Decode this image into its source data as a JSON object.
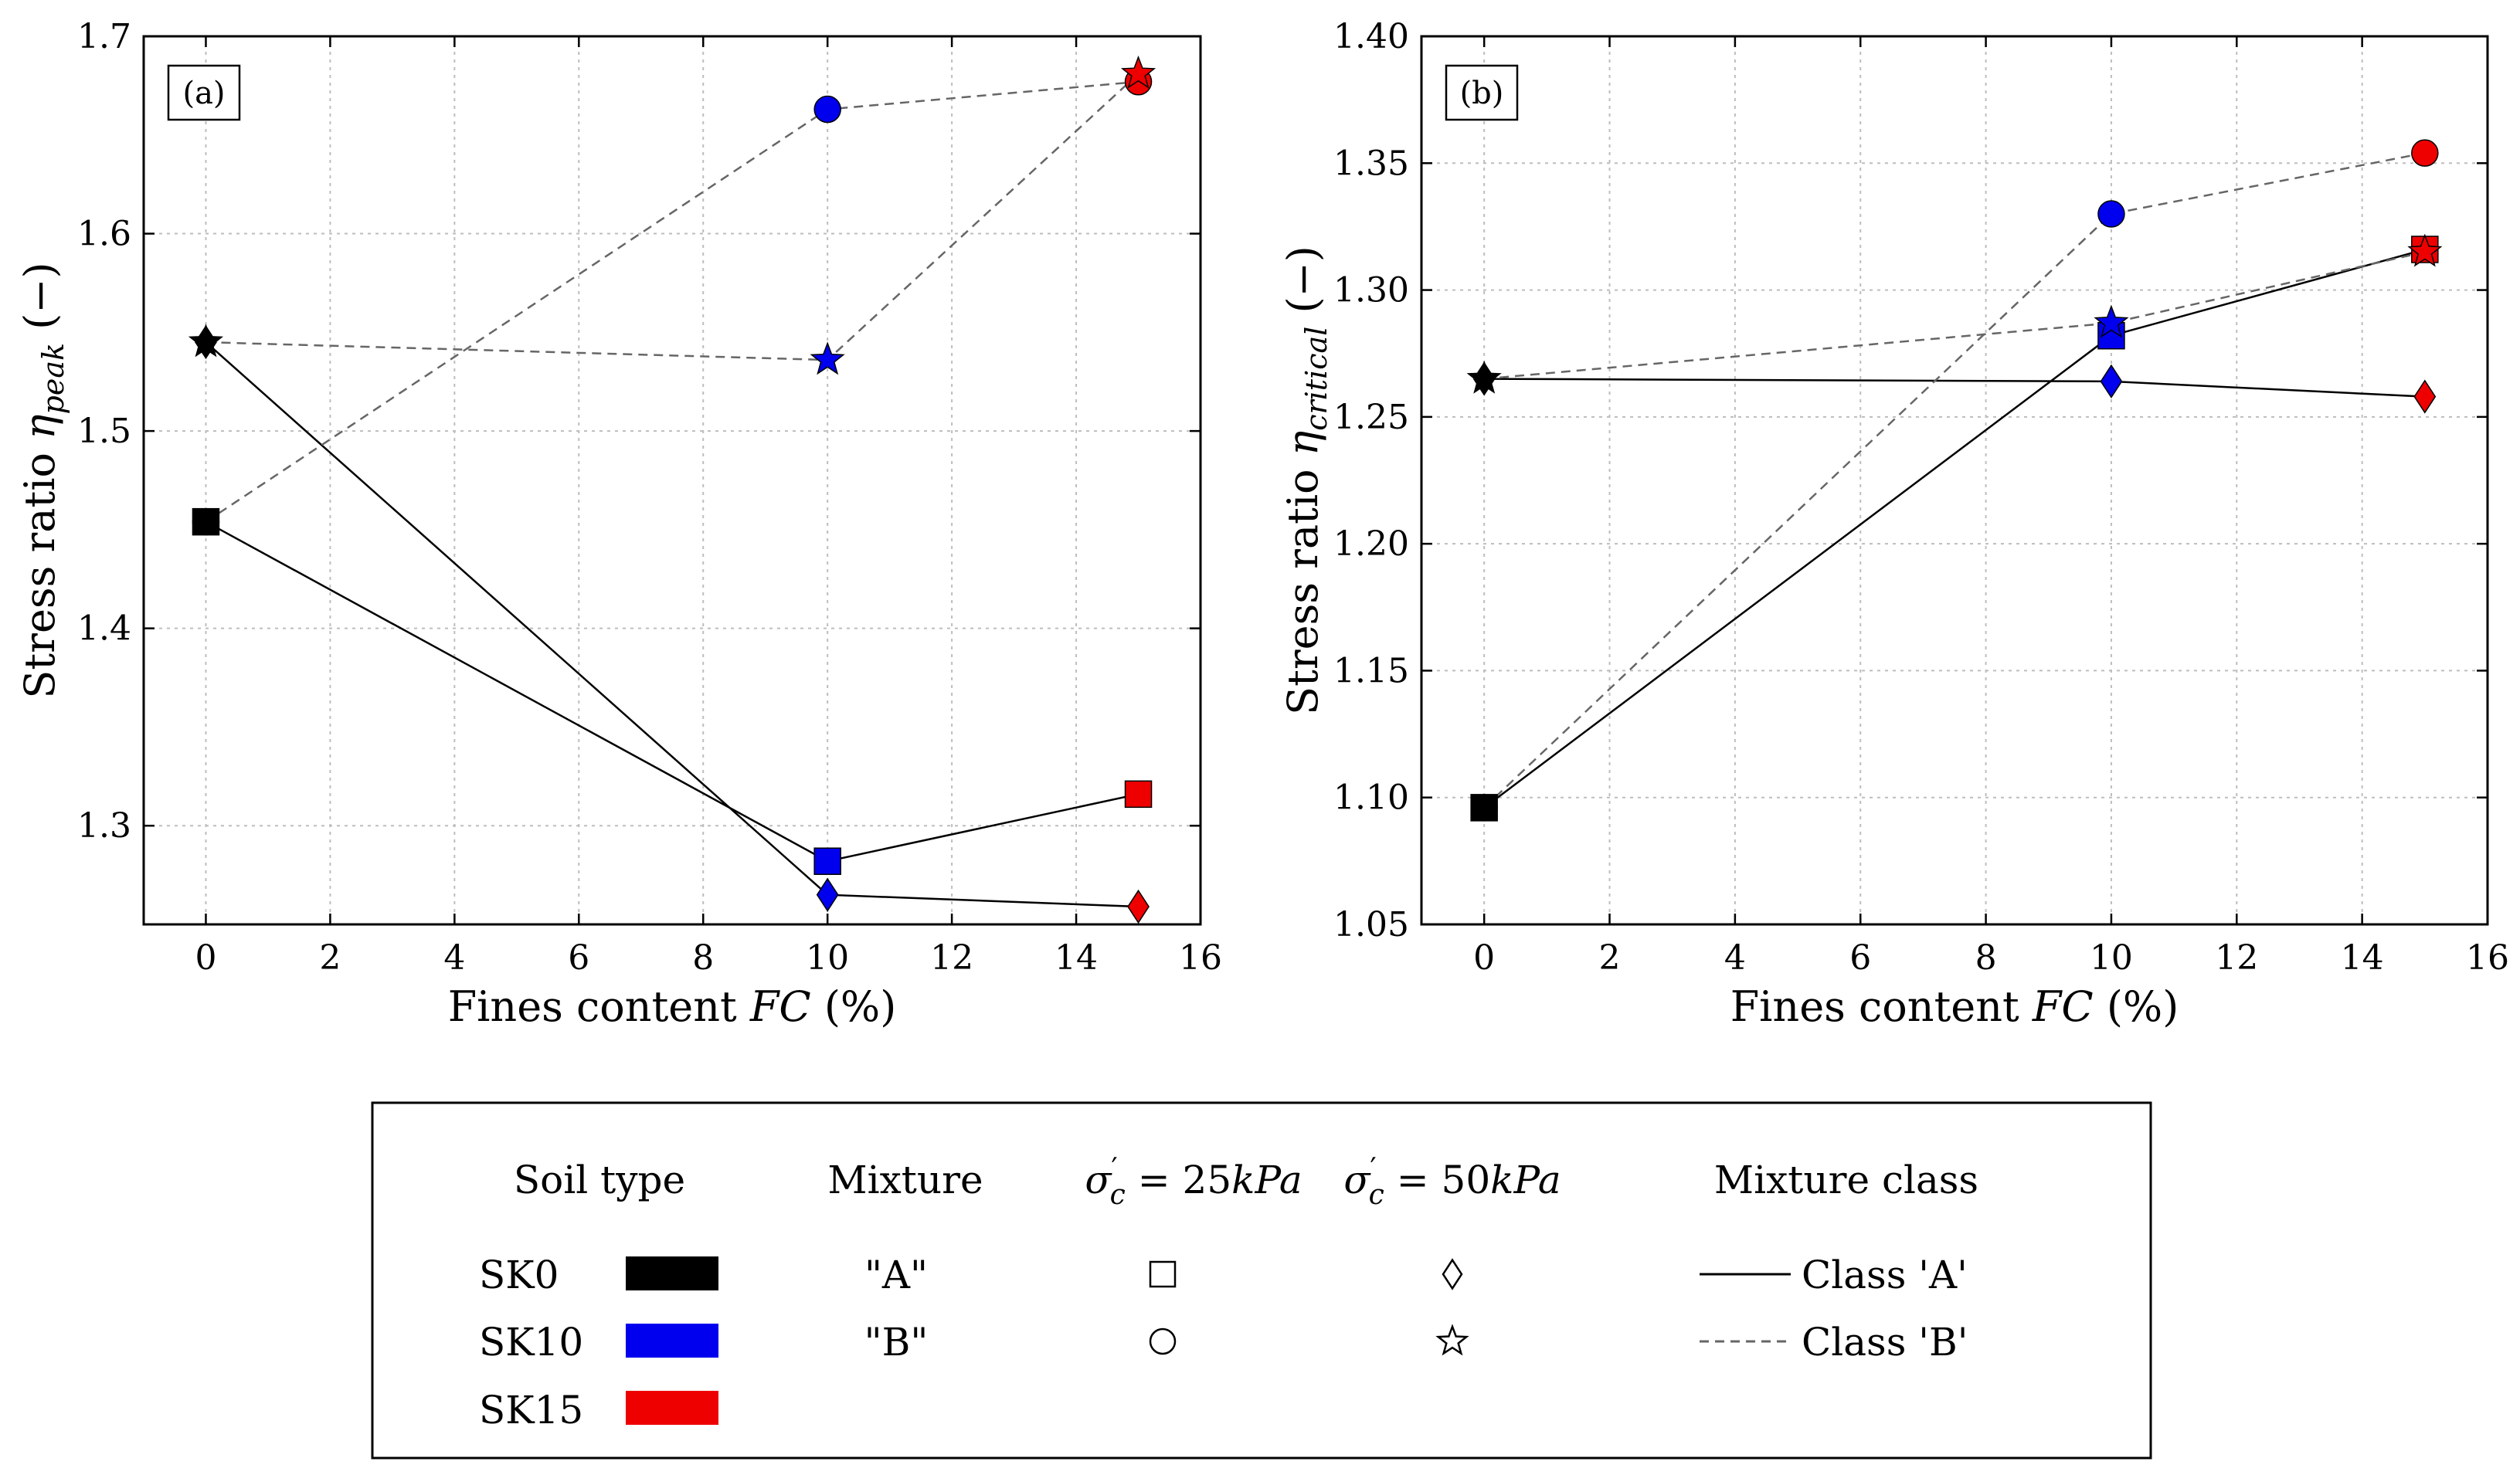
{
  "chart_data": [
    {
      "type": "scatter",
      "panel_label": "(a)",
      "xlabel": "Fines content FC (%)",
      "ylabel": "Stress ratio η_peak (−)",
      "xlim": [
        -1,
        16
      ],
      "ylim": [
        1.25,
        1.7
      ],
      "xticks": [
        "0",
        "2",
        "4",
        "6",
        "8",
        "10",
        "12",
        "14",
        "16"
      ],
      "yticks": [
        "1.3",
        "1.4",
        "1.5",
        "1.6",
        "1.7"
      ],
      "grid": true,
      "series": [
        {
          "mixture": "A",
          "sigma": "25kPa",
          "marker": "square",
          "class": "A",
          "x": [
            0,
            10,
            15
          ],
          "y": [
            1.454,
            1.282,
            1.316
          ]
        },
        {
          "mixture": "A",
          "sigma": "50kPa",
          "marker": "diamond",
          "class": "A",
          "x": [
            0,
            10,
            15
          ],
          "y": [
            1.545,
            1.265,
            1.259
          ]
        },
        {
          "mixture": "B",
          "sigma": "25kPa",
          "marker": "circle",
          "class": "B",
          "x": [
            0,
            10,
            15
          ],
          "y": [
            1.454,
            1.663,
            1.677
          ]
        },
        {
          "mixture": "B",
          "sigma": "50kPa",
          "marker": "star",
          "class": "B",
          "x": [
            0,
            10,
            15
          ],
          "y": [
            1.545,
            1.536,
            1.681
          ]
        }
      ]
    },
    {
      "type": "scatter",
      "panel_label": "(b)",
      "xlabel": "Fines content FC (%)",
      "ylabel": "Stress ratio η_critical (−)",
      "xlim": [
        -1,
        16
      ],
      "ylim": [
        1.05,
        1.4
      ],
      "xticks": [
        "0",
        "2",
        "4",
        "6",
        "8",
        "10",
        "12",
        "14",
        "16"
      ],
      "yticks": [
        "1.05",
        "1.10",
        "1.15",
        "1.20",
        "1.25",
        "1.30",
        "1.35",
        "1.40"
      ],
      "grid": true,
      "series": [
        {
          "mixture": "A",
          "sigma": "25kPa",
          "marker": "square",
          "class": "A",
          "x": [
            0,
            10,
            15
          ],
          "y": [
            1.096,
            1.282,
            1.316
          ]
        },
        {
          "mixture": "A",
          "sigma": "50kPa",
          "marker": "diamond",
          "class": "A",
          "x": [
            0,
            10,
            15
          ],
          "y": [
            1.265,
            1.264,
            1.258
          ]
        },
        {
          "mixture": "B",
          "sigma": "25kPa",
          "marker": "circle",
          "class": "B",
          "x": [
            0,
            10,
            15
          ],
          "y": [
            1.096,
            1.33,
            1.354
          ]
        },
        {
          "mixture": "B",
          "sigma": "50kPa",
          "marker": "star",
          "class": "B",
          "x": [
            0,
            10,
            15
          ],
          "y": [
            1.265,
            1.287,
            1.315
          ]
        }
      ]
    }
  ],
  "soil_colors": {
    "0": "#000000",
    "10": "#0000ee",
    "15": "#ee0000"
  },
  "legend": {
    "headers": {
      "soil_type": "Soil type",
      "mixture": "Mixture",
      "sigma25": "σ′c = 25kPa",
      "sigma50": "σ′c = 50kPa",
      "mixture_class": "Mixture class"
    },
    "soils": [
      {
        "name": "SK0",
        "color": "#000000"
      },
      {
        "name": "SK10",
        "color": "#0000ee"
      },
      {
        "name": "SK15",
        "color": "#ee0000"
      }
    ],
    "mixtures": [
      "\"A\"",
      "\"B\""
    ],
    "sigma25_markers": [
      "square",
      "circle"
    ],
    "sigma50_markers": [
      "diamond",
      "star"
    ],
    "classes": [
      "Class 'A'",
      "Class 'B'"
    ]
  }
}
